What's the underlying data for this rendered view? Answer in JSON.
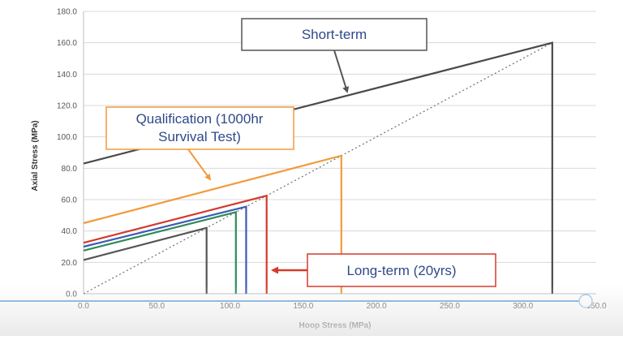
{
  "chart_data": {
    "type": "line",
    "title": "",
    "xlabel": "Hoop Stress (MPa)",
    "ylabel": "Axial Stress (MPa)",
    "xlim": [
      0,
      350
    ],
    "ylim": [
      0,
      180
    ],
    "x_ticks": [
      "0.0",
      "50.0",
      "100.0",
      "150.0",
      "200.0",
      "250.0",
      "300.0",
      "350.0"
    ],
    "y_ticks": [
      "0.0",
      "20.0",
      "40.0",
      "60.0",
      "80.0",
      "100.0",
      "120.0",
      "140.0",
      "160.0",
      "180.0"
    ],
    "grid": "horizontal",
    "reference_line": {
      "style": "dotted",
      "color": "#777777",
      "x": [
        0,
        320
      ],
      "y": [
        0,
        160
      ]
    },
    "series": [
      {
        "color": "#4a4a4a",
        "x": [
          0,
          320,
          320
        ],
        "y": [
          83,
          160,
          0
        ]
      },
      {
        "color": "#f29a3a",
        "x": [
          0,
          176,
          176
        ],
        "y": [
          45,
          88,
          0
        ]
      },
      {
        "color": "#d43a2a",
        "x": [
          0,
          125,
          125
        ],
        "y": [
          32.5,
          62.5,
          0
        ]
      },
      {
        "color": "#3b5bb5",
        "x": [
          0,
          111,
          111
        ],
        "y": [
          30,
          55.5,
          0
        ]
      },
      {
        "color": "#2e8b57",
        "x": [
          0,
          104,
          104
        ],
        "y": [
          27.5,
          52,
          0
        ]
      },
      {
        "color": "#555555",
        "x": [
          0,
          84,
          84
        ],
        "y": [
          21.5,
          42,
          0
        ]
      }
    ],
    "annotations": [
      {
        "text": "Short-term",
        "color": "#2e4a8a",
        "border": "#555555",
        "arrow_color": "#555555",
        "arrow_to": [
          180,
          125
        ]
      },
      {
        "text_lines": [
          "Qualification (1000hr",
          "Survival Test)"
        ],
        "color": "#2e4a8a",
        "border": "#f29a3a",
        "arrow_color": "#f29a3a",
        "arrow_to": [
          85,
          70
        ]
      },
      {
        "text": "Long-term (20yrs)",
        "color": "#2e4a8a",
        "border": "#d43a2a",
        "arrow_color": "#d43a2a",
        "arrow_to": [
          128,
          15
        ]
      }
    ]
  }
}
